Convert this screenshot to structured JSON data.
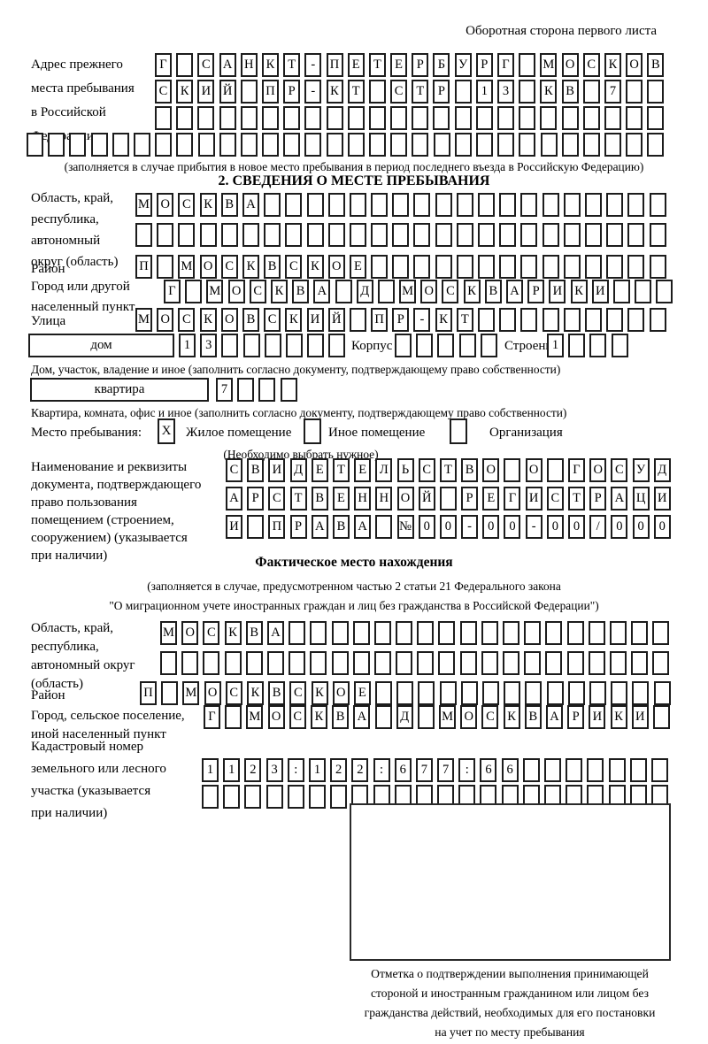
{
  "page": {
    "side_note": "Оборотная сторона первого листа"
  },
  "prev_address": {
    "label_lines": [
      "Адрес прежнего",
      "места пребывания",
      "в Российской",
      "Федерации"
    ],
    "rows": [
      "Г САНКТ-ПЕТЕРБУРГ МОСКОВ",
      "СКИЙ ПР-КТ СТР 13 КВ 7  ",
      "                        ",
      "                              "
    ],
    "note": "(заполняется в случае прибытия в новое место пребывания в период последнего въезда в Российскую Федерацию)"
  },
  "section2": {
    "title": "2. СВЕДЕНИЯ О МЕСТЕ ПРЕБЫВАНИЯ",
    "region": {
      "label_lines": [
        "Область, край,",
        "республика,",
        "автономный",
        "округ (область)"
      ],
      "rows": [
        "МОСКВА                   ",
        "                         "
      ]
    },
    "district": {
      "label": "Район",
      "row": "П МОСКВСКОЕ              "
    },
    "city": {
      "label_lines": [
        "Город или другой",
        "населенный пункт"
      ],
      "row": "Г МОСКВА Д МОСКВАРИКИ   "
    },
    "street": {
      "label": "Улица",
      "row": "МОСКОВСКИЙ ПР-КТ         "
    },
    "house": {
      "box_label": "дом",
      "cells": "13      ",
      "korpus_label": "Корпус",
      "korpus_cells": "     ",
      "stroenie_label": "Строение",
      "stroenie_cells": "1   ",
      "note": "Дом, участок, владение и иное (заполнить согласно документу, подтверждающему право собственности)"
    },
    "apartment": {
      "box_label": "квартира",
      "cells": "7   ",
      "note": "Квартира, комната, офис и иное (заполнить согласно документу, подтверждающему право собственности)"
    },
    "stay": {
      "label": "Место пребывания:",
      "options": [
        {
          "label": "Жилое помещение",
          "mark": "X"
        },
        {
          "label": "Иное помещение",
          "mark": ""
        },
        {
          "label": "Организация",
          "mark": ""
        }
      ],
      "note": "(Необходимо выбрать нужное)"
    },
    "doc": {
      "label_lines": [
        "Наименование и реквизиты",
        "документа, подтверждающего",
        "право пользования",
        "помещением (строением,",
        "сооружением) (указывается",
        "при наличии)"
      ],
      "rows": [
        "СВИДЕТЕЛЬСТВО О ГОСУД",
        "АРСТВЕННОЙ РЕГИСТРАЦИ",
        "И ПРАВА №00-00-00/000"
      ]
    }
  },
  "actual": {
    "title": "Фактическое место нахождения",
    "note_lines": [
      "(заполняется в случае, предусмотренном частью 2 статьи 21 Федерального закона",
      "\"О миграционном учете иностранных граждан и лиц без гражданства в Российской Федерации\")"
    ],
    "region": {
      "label_lines": [
        "Область, край,",
        "республика,",
        "автономный округ",
        "(область)"
      ],
      "rows": [
        "МОСКВА                  ",
        "                        "
      ]
    },
    "district": {
      "label": "Район",
      "row": "П МОСКВСКОЕ              "
    },
    "city": {
      "label_lines": [
        "Город, сельское поселение,",
        "иной населенный пункт"
      ],
      "row": "Г МОСКВА Д МОСКВАРИКИ "
    },
    "cadastral": {
      "label_lines": [
        "Кадастровый номер",
        "земельного или лесного",
        "участка (указывается",
        "при наличии)"
      ],
      "rows": [
        "1123:122:677:66       ",
        "                      "
      ]
    },
    "stamp_caption_lines": [
      "Отметка о подтверждении выполнения принимающей",
      "стороной и иностранным гражданином или лицом без",
      "гражданства действий, необходимых для его постановки",
      "на учет по месту пребывания"
    ]
  }
}
